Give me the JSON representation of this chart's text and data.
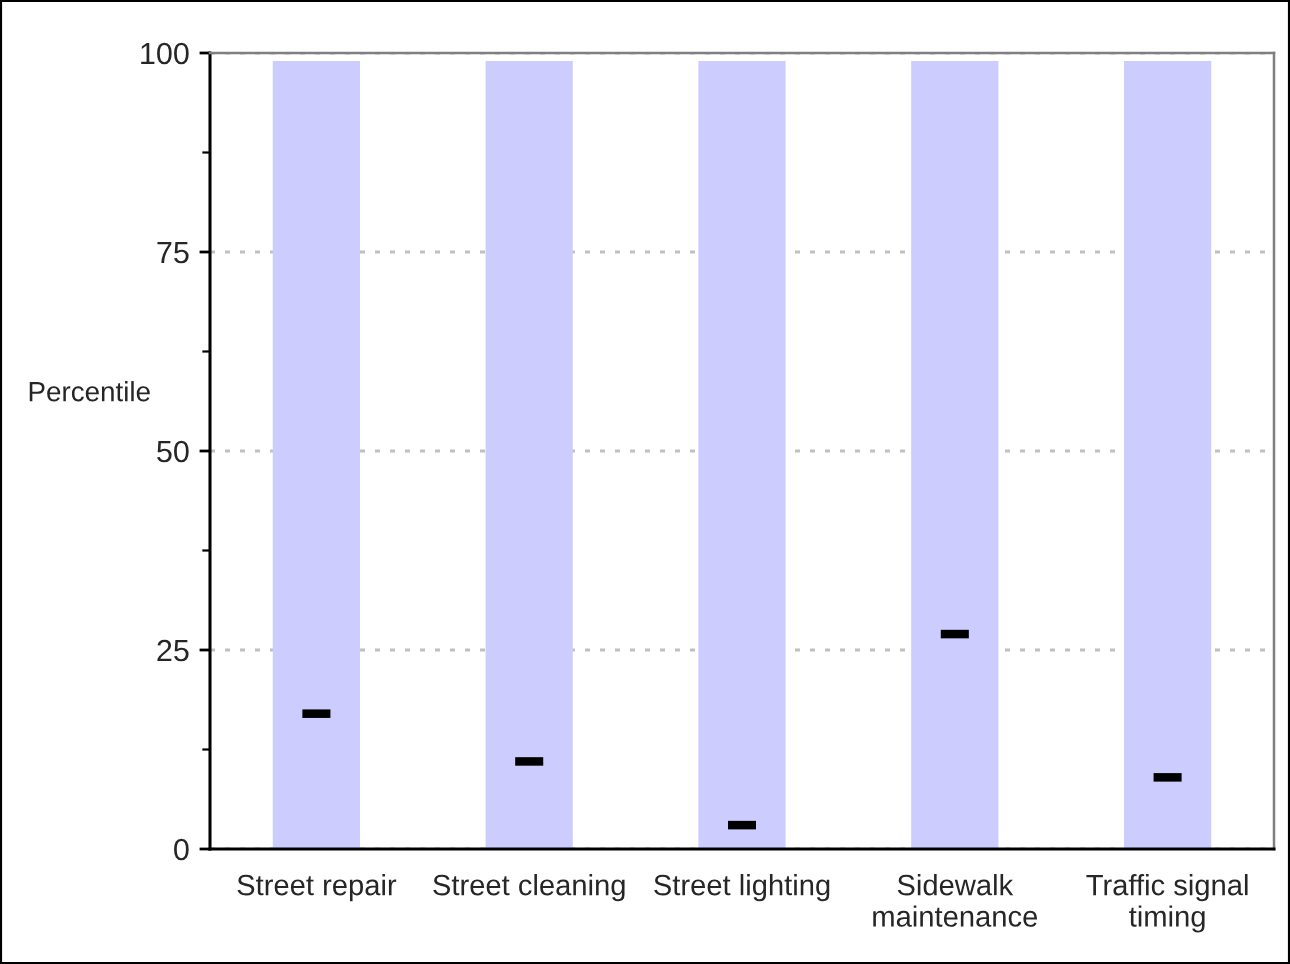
{
  "chart_data": {
    "type": "bar",
    "categories": [
      "Street repair",
      "Street cleaning",
      "Street lighting",
      "Sidewalk\nmaintenance",
      "Traffic signal\ntiming"
    ],
    "series": [
      {
        "color": "#ccccff",
        "values": [
          99,
          99,
          99,
          99,
          99
        ]
      },
      {
        "type": "scatter",
        "color": "#000000",
        "x": [
          "Street repair",
          "Street cleaning",
          "Street lighting",
          "Sidewalk\nmaintenance",
          "Traffic signal\ntiming"
        ],
        "values": [
          17,
          11,
          3,
          27,
          9
        ]
      }
    ],
    "ylabel": "Percentile",
    "ylim": [
      0,
      100
    ],
    "yticks": [
      0,
      {
        "value": 12.5,
        "label": null
      },
      25,
      {
        "value": 37.5,
        "label": null
      },
      50,
      {
        "value": 62.5,
        "label": null
      },
      75,
      {
        "value": 87.5,
        "label": null
      },
      100
    ],
    "grid": "y"
  }
}
